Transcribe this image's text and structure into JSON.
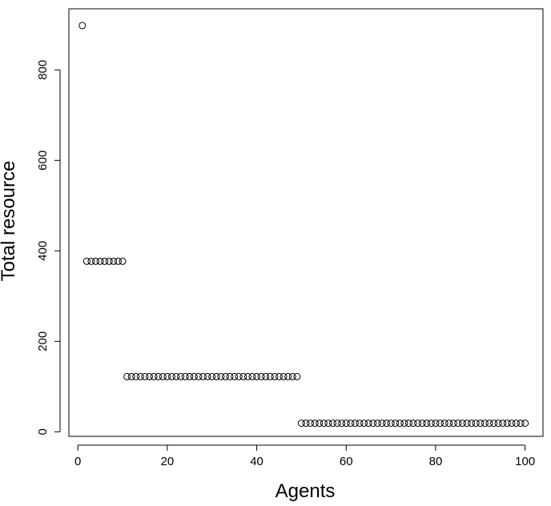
{
  "chart_data": {
    "type": "scatter",
    "title": "",
    "xlabel": "Agents",
    "ylabel": "Total resource",
    "xlim": [
      -2,
      104
    ],
    "ylim": [
      -10,
      935
    ],
    "xticks": [
      0,
      20,
      40,
      60,
      80,
      100
    ],
    "yticks": [
      0,
      200,
      400,
      600,
      800
    ],
    "grid": false,
    "series": [
      {
        "groups": [
          {
            "x_from": 1,
            "x_to": 1,
            "y": 898
          },
          {
            "x_from": 2,
            "x_to": 10,
            "y": 377
          },
          {
            "x_from": 11,
            "x_to": 49,
            "y": 122
          },
          {
            "x_from": 50,
            "x_to": 100,
            "y": 19
          }
        ]
      }
    ]
  }
}
